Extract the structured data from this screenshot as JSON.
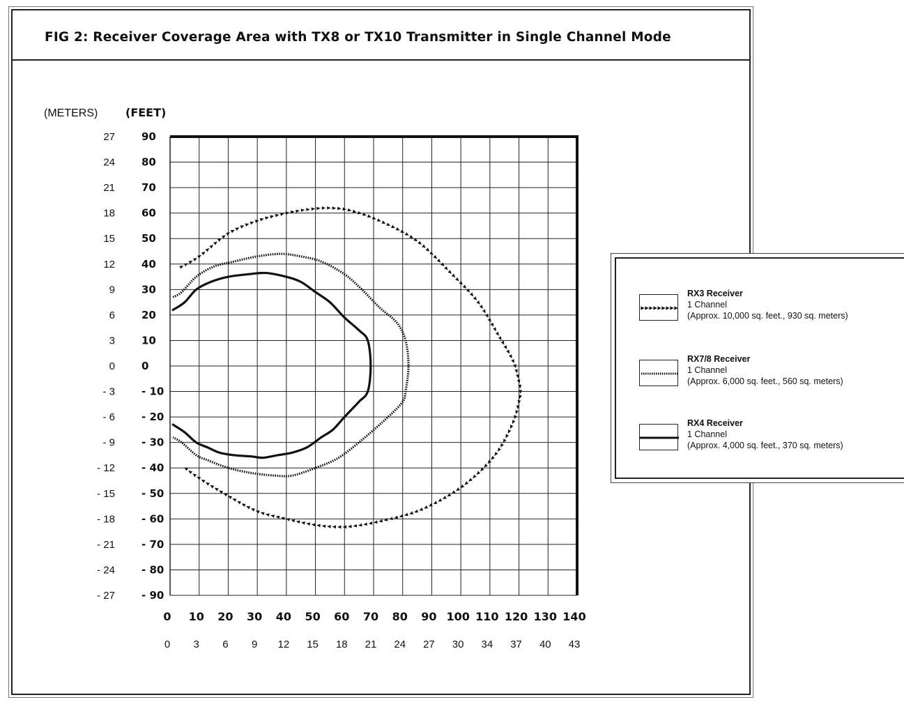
{
  "title": "FIG 2:  Receiver Coverage Area with TX8 or TX10 Transmitter in Single Channel Mode",
  "chart_data": {
    "type": "line",
    "title": "FIG 2:  Receiver Coverage Area with TX8 or TX10 Transmitter in Single Channel Mode",
    "y_unit_meters_label": "(METERS)",
    "y_unit_feet_label": "(FEET)",
    "x_ticks_feet": [
      "0",
      "10",
      "20",
      "30",
      "40",
      "50",
      "60",
      "70",
      "80",
      "90",
      "100",
      "110",
      "120",
      "130",
      "140"
    ],
    "x_ticks_meters": [
      "0",
      "3",
      "6",
      "9",
      "12",
      "15",
      "18",
      "21",
      "24",
      "27",
      "30",
      "34",
      "37",
      "40",
      "43"
    ],
    "y_ticks_feet": [
      "90",
      "80",
      "70",
      "60",
      "50",
      "40",
      "30",
      "20",
      "10",
      "0",
      "- 10",
      "- 20",
      "- 30",
      "- 40",
      "- 50",
      "- 60",
      "- 70",
      "- 80",
      "- 90"
    ],
    "y_ticks_meters": [
      "27",
      "24",
      "21",
      "18",
      "15",
      "12",
      "9",
      "6",
      "3",
      "0",
      "- 3",
      "- 6",
      "- 9",
      "- 12",
      "- 15",
      "- 18",
      "- 21",
      "- 24",
      "- 27"
    ],
    "xlim": [
      0,
      140
    ],
    "ylim": [
      -90,
      90
    ],
    "grid": true,
    "series": [
      {
        "name": "RX3 Receiver",
        "style": "triangles",
        "x": [
          4,
          10,
          20,
          30,
          40,
          48,
          55,
          62,
          72,
          85,
          97,
          106,
          113,
          118,
          120,
          120.5,
          120,
          118,
          113,
          106,
          97,
          85,
          72,
          62,
          55,
          48,
          40,
          30,
          20,
          10,
          4
        ],
        "y": [
          39,
          43,
          52,
          57,
          60,
          61.5,
          62,
          61,
          57,
          49,
          36,
          25,
          12,
          2,
          -6,
          -10,
          -14,
          -22,
          -33,
          -42,
          -50,
          -57,
          -61,
          -63,
          -63,
          -62,
          -60,
          -57,
          -51,
          -44,
          -39
        ]
      },
      {
        "name": "RX7/8 Receiver",
        "style": "dotted",
        "x": [
          1,
          4,
          9,
          15,
          22,
          30,
          38,
          45,
          52,
          60,
          66,
          72,
          78,
          81,
          82,
          81,
          80,
          75,
          66,
          58,
          50,
          42,
          36,
          28,
          20,
          13,
          9,
          4,
          1
        ],
        "y": [
          27,
          29,
          35,
          39,
          41,
          43,
          44,
          43,
          41,
          36,
          30,
          23,
          17,
          10,
          0,
          -10,
          -14,
          -20,
          -29,
          -36,
          -40,
          -43,
          -43,
          -42,
          -40,
          -37,
          -35,
          -30,
          -28
        ]
      },
      {
        "name": "RX4 Receiver",
        "style": "solid",
        "x": [
          1,
          5,
          9,
          14,
          20,
          27,
          33,
          40,
          45,
          50,
          55,
          60,
          65,
          68,
          69,
          68,
          65,
          60,
          56,
          52,
          47,
          42,
          37,
          32,
          28,
          22,
          17,
          13,
          9,
          5,
          1
        ],
        "y": [
          22,
          25,
          30,
          33,
          35,
          36,
          36.5,
          35,
          33,
          29,
          25,
          19,
          14,
          10,
          0,
          -10,
          -14,
          -20,
          -25,
          -28,
          -32,
          -34,
          -35,
          -36,
          -35.5,
          -35,
          -34,
          -32,
          -30,
          -26,
          -23
        ]
      }
    ],
    "legend_position": "right"
  },
  "legend": [
    {
      "name": "RX3 Receiver",
      "line1": "1 Channel",
      "line2": "(Approx. 10,000 sq. feet., 930 sq. meters)"
    },
    {
      "name": "RX7/8 Receiver",
      "line1": "1 Channel",
      "line2": "(Approx. 6,000 sq. feet., 560 sq. meters)"
    },
    {
      "name": "RX4 Receiver",
      "line1": "1 Channel",
      "line2": "(Approx. 4,000 sq. feet., 370 sq. meters)"
    }
  ]
}
